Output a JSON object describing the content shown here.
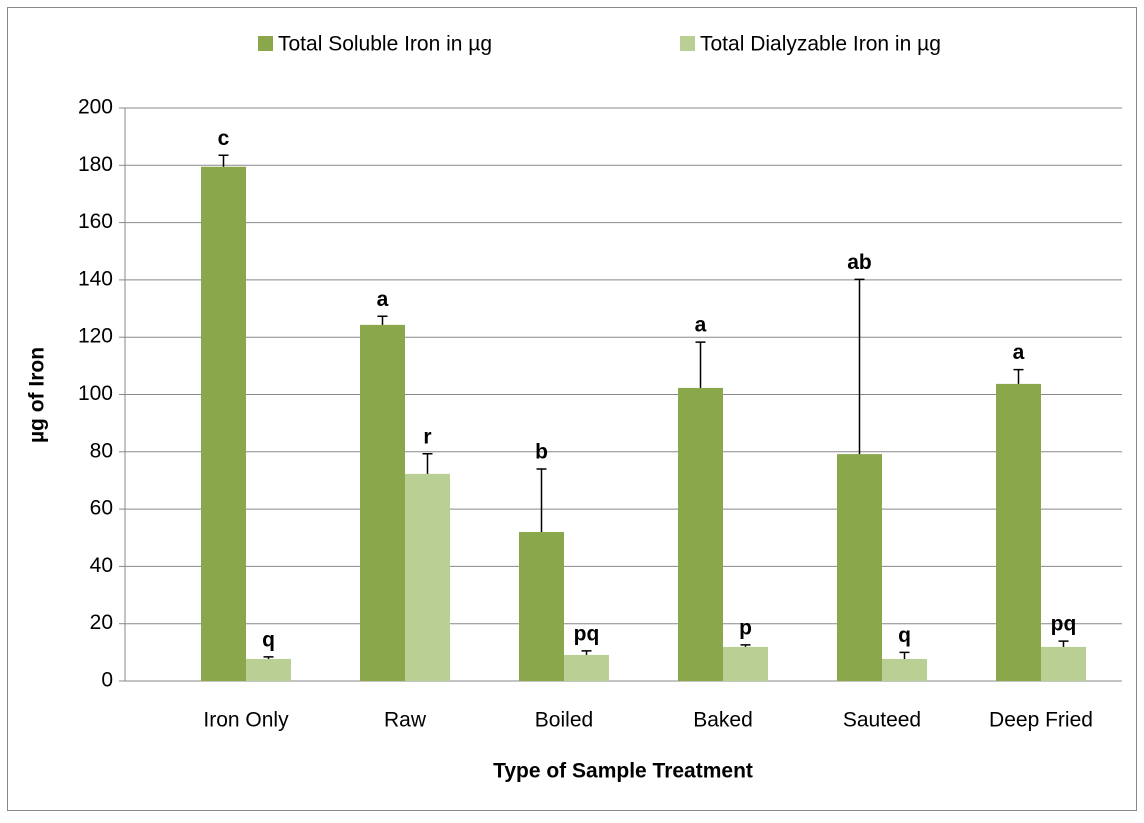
{
  "chart_data": {
    "type": "bar",
    "x_label": "Type of Sample Treatment",
    "y_label": "µg of Iron",
    "categories": [
      "Iron Only",
      "Raw",
      "Boiled",
      "Baked",
      "Sauteed",
      "Deep Fried"
    ],
    "series": [
      {
        "name": "Total Soluble Iron in µg",
        "color": "#8aa84b",
        "values": [
          179.5,
          124.3,
          52,
          102.3,
          79.2,
          103.7
        ],
        "errors": [
          4,
          3,
          22,
          16,
          61,
          5
        ],
        "annotations": [
          "c",
          "a",
          "b",
          "a",
          "ab",
          "a"
        ]
      },
      {
        "name": "Total Dialyzable Iron in µg",
        "color": "#b9cf94",
        "values": [
          7.7,
          72.3,
          9.1,
          11.9,
          7.7,
          11.9
        ],
        "errors": [
          0.7,
          7,
          1.4,
          0.7,
          2.3,
          2
        ],
        "annotations": [
          "q",
          "r",
          "pq",
          "p",
          "q",
          "pq"
        ]
      }
    ],
    "ylim": [
      0,
      200
    ],
    "yticks": [
      0,
      20,
      40,
      60,
      80,
      100,
      120,
      140,
      160,
      180,
      200
    ],
    "grid": true,
    "legend": "top"
  }
}
